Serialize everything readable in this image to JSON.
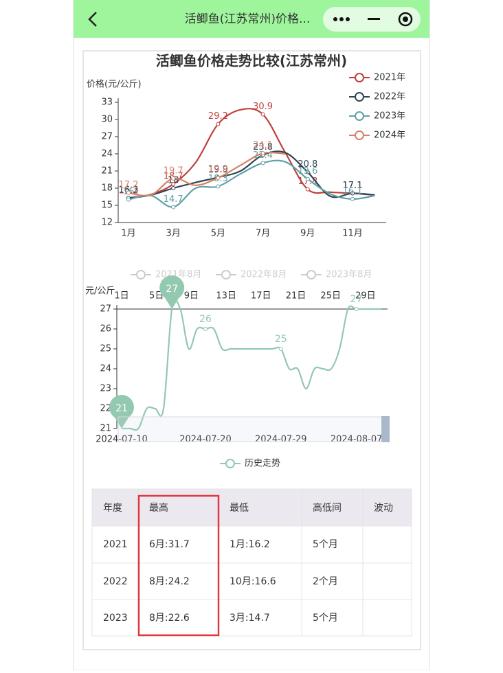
{
  "header": {
    "title": "活鲫鱼(江苏常州)价格..."
  },
  "chart_data": [
    {
      "type": "line",
      "title": "活鲫鱼价格走势比较(江苏常州)",
      "y_label": "价格(元/公斤)",
      "categories": [
        "1月",
        null,
        "3月",
        null,
        "5月",
        null,
        "7月",
        null,
        "9月",
        null,
        "11月",
        null
      ],
      "ylim": [
        12,
        33
      ],
      "yticks": [
        12,
        15,
        18,
        21,
        24,
        27,
        30,
        33
      ],
      "legend": "top-right",
      "series": [
        {
          "name": "2021年",
          "color": "#c0403a",
          "values": [
            16.2,
            16.9,
            18.7,
            22.5,
            29.2,
            31.7,
            30.9,
            24.2,
            17.8,
            17.3,
            17.1,
            16.8
          ]
        },
        {
          "name": "2022年",
          "color": "#2f4554",
          "values": [
            16.3,
            16.8,
            18.0,
            19.0,
            19.9,
            21.0,
            23.8,
            24.2,
            20.8,
            16.6,
            17.1,
            16.8
          ]
        },
        {
          "name": "2023年",
          "color": "#61a0a8",
          "values": [
            16.0,
            16.7,
            14.7,
            18.0,
            18.3,
            20.5,
            22.4,
            22.6,
            19.6,
            17.0,
            16.1,
            16.7
          ]
        },
        {
          "name": "2024年",
          "color": "#d48265",
          "values": [
            17.2,
            16.8,
            19.7,
            18.5,
            19.8,
            22.0,
            24.1,
            24.0,
            null,
            null,
            null,
            null
          ]
        }
      ]
    },
    {
      "type": "line",
      "y_label": "元/公斤",
      "legend_inactive": [
        "2021年8月",
        "2022年8月",
        "2023年8月"
      ],
      "top_axis_labels": [
        "1日",
        "5日",
        "9日",
        "13日",
        "17日",
        "21日",
        "25日",
        "29日"
      ],
      "categories": [
        "2024-07-10",
        null,
        null,
        null,
        null,
        null,
        null,
        null,
        null,
        null,
        "2024-07-20",
        null,
        null,
        null,
        null,
        null,
        null,
        null,
        null,
        "2024-07-29",
        null,
        null,
        null,
        null,
        null,
        null,
        null,
        null,
        "2024-08-07",
        null,
        null,
        null
      ],
      "ylim": [
        21,
        27
      ],
      "yticks": [
        21,
        22,
        23,
        24,
        25,
        26,
        27
      ],
      "series": [
        {
          "name": "历史走势",
          "color": "#93c9b0",
          "values": [
            21,
            21,
            21,
            22,
            22,
            22,
            27,
            27,
            25,
            26,
            26,
            26,
            25,
            25,
            25,
            25,
            25,
            25,
            25,
            25,
            24,
            24,
            23,
            24,
            24,
            24,
            25,
            27,
            27,
            27,
            27,
            27
          ]
        }
      ]
    }
  ],
  "table": {
    "header": [
      "年度",
      "最高",
      "最低",
      "高低间",
      "波动"
    ],
    "rows": [
      [
        "2021",
        "6月:31.7",
        "1月:16.2",
        "5个月",
        ""
      ],
      [
        "2022",
        "8月:24.2",
        "10月:16.6",
        "2个月",
        ""
      ],
      [
        "2023",
        "8月:22.6",
        "3月:14.7",
        "5个月",
        ""
      ]
    ]
  }
}
